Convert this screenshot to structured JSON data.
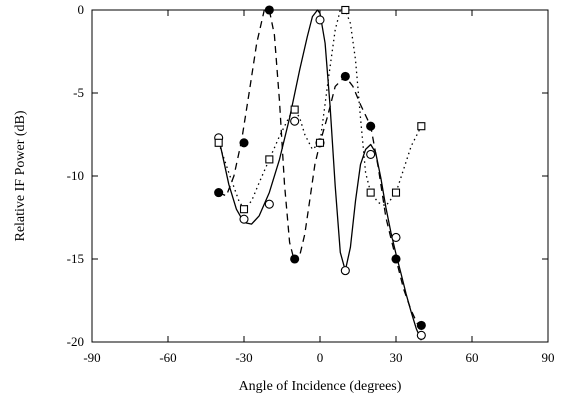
{
  "chart_data": {
    "type": "scatter",
    "title": "",
    "xlabel": "Angle of Incidence (degrees)",
    "ylabel": "Relative IF Power (dB)",
    "xlim": [
      -90,
      90
    ],
    "ylim": [
      -20,
      0
    ],
    "xticks": [
      -90,
      -60,
      -30,
      0,
      30,
      60,
      90
    ],
    "yticks": [
      0,
      -5,
      -10,
      -15,
      -20
    ],
    "xtick_labels": [
      "-90",
      "-60",
      "-30",
      "0",
      "30",
      "60",
      "90"
    ],
    "ytick_labels": [
      "0",
      "-5",
      "-10",
      "-15",
      "-20"
    ],
    "grid": false,
    "legend": "none",
    "series": [
      {
        "marker": "open-circle",
        "line_style": "solid",
        "color": "#000000",
        "x": [
          -40,
          -30,
          -20,
          -10,
          0,
          10,
          20,
          30,
          40
        ],
        "y": [
          -7.7,
          -12.6,
          -11.7,
          -6.7,
          -0.6,
          -15.7,
          -8.7,
          -13.7,
          -19.6
        ],
        "curve_x": [
          -40,
          -36,
          -33,
          -30,
          -27,
          -24,
          -20,
          -16,
          -12,
          -8,
          -5,
          -3,
          -1,
          0,
          2,
          4,
          6,
          8,
          10,
          12,
          14,
          16,
          18,
          20,
          22,
          24,
          26,
          28,
          30,
          32,
          34,
          36,
          38,
          40
        ],
        "curve_y": [
          -7.7,
          -10.5,
          -12.0,
          -12.8,
          -12.9,
          -12.4,
          -11.0,
          -9.0,
          -6.5,
          -3.6,
          -1.6,
          -0.4,
          0.0,
          -0.2,
          -2.0,
          -5.8,
          -10.6,
          -14.6,
          -15.7,
          -14.3,
          -11.5,
          -9.3,
          -8.4,
          -8.1,
          -8.6,
          -10.1,
          -11.9,
          -13.4,
          -14.7,
          -15.9,
          -17.1,
          -18.2,
          -19.2,
          -19.9
        ]
      },
      {
        "marker": "filled-circle",
        "line_style": "dashed",
        "color": "#000000",
        "x": [
          -40,
          -30,
          -20,
          -10,
          0,
          10,
          20,
          30,
          40
        ],
        "y": [
          -11,
          -8,
          0,
          -15,
          -8,
          -4,
          -7,
          -15,
          -19
        ],
        "curve_x": [
          -40,
          -37,
          -34,
          -31,
          -28,
          -25,
          -22,
          -20,
          -18,
          -16,
          -14,
          -12,
          -10,
          -8,
          -6,
          -4,
          -2,
          0,
          3,
          6,
          10,
          13,
          16,
          20,
          23,
          26,
          30,
          33,
          36,
          40
        ],
        "curve_y": [
          -11.0,
          -11.2,
          -10.0,
          -7.9,
          -5.0,
          -2.0,
          0.0,
          0.0,
          -1.5,
          -5.5,
          -10.5,
          -14.0,
          -15.2,
          -14.8,
          -13.5,
          -11.4,
          -9.3,
          -8.0,
          -6.4,
          -4.6,
          -4.0,
          -4.6,
          -5.7,
          -7.0,
          -9.5,
          -12.5,
          -15.0,
          -16.8,
          -18.1,
          -19.4
        ]
      },
      {
        "marker": "open-square",
        "line_style": "dotted",
        "color": "#000000",
        "x": [
          -40,
          -30,
          -20,
          -10,
          0,
          10,
          20,
          30,
          40
        ],
        "y": [
          -8,
          -12,
          -9,
          -6,
          -8,
          0,
          -11,
          -11,
          -7
        ],
        "curve_x": [
          -40,
          -36,
          -32,
          -30,
          -27,
          -24,
          -20,
          -16,
          -12,
          -10,
          -8,
          -6,
          -3,
          0,
          3,
          6,
          8,
          10,
          12,
          14,
          16,
          18,
          20,
          23,
          26,
          30,
          33,
          36,
          40
        ],
        "curve_y": [
          -8.0,
          -9.8,
          -11.5,
          -12.0,
          -11.5,
          -10.4,
          -9.0,
          -7.6,
          -6.4,
          -6.0,
          -6.5,
          -7.5,
          -8.4,
          -8.0,
          -4.5,
          -1.2,
          0.0,
          0.0,
          -0.8,
          -3.0,
          -6.5,
          -9.8,
          -11.0,
          -11.6,
          -11.8,
          -11.0,
          -9.6,
          -8.2,
          -7.0
        ]
      }
    ]
  }
}
